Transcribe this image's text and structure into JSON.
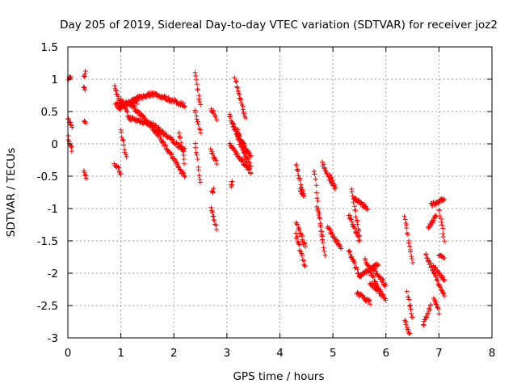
{
  "chart_data": {
    "type": "scatter",
    "title": "Day 205 of 2019, Sidereal Day-to-day VTEC variation (SDTVAR) for receiver joz2",
    "xlabel": "GPS time / hours",
    "ylabel": "SDTVAR / TECUs",
    "xlim": [
      0,
      8
    ],
    "ylim": [
      -3,
      1.5
    ],
    "x_ticks": [
      "0",
      "1",
      "2",
      "3",
      "4",
      "5",
      "6",
      "7",
      "8"
    ],
    "y_ticks": [
      "1.5",
      "1",
      "0.5",
      "0",
      "-0.5",
      "-1",
      "-1.5",
      "-2",
      "-2.5",
      "-3"
    ],
    "grid": true,
    "marker": "plus",
    "color": "#ff0000",
    "segments": [
      {
        "x": [
          0.0,
          0.05
        ],
        "y": [
          1.0,
          1.03
        ]
      },
      {
        "x": [
          0.0,
          0.08
        ],
        "y": [
          0.4,
          0.25
        ]
      },
      {
        "x": [
          0.0,
          0.08
        ],
        "y": [
          0.1,
          -0.1
        ]
      },
      {
        "x": [
          0.3,
          0.33
        ],
        "y": [
          1.05,
          1.1
        ]
      },
      {
        "x": [
          0.3,
          0.32
        ],
        "y": [
          0.9,
          0.85
        ]
      },
      {
        "x": [
          0.3,
          0.33
        ],
        "y": [
          0.35,
          0.33
        ]
      },
      {
        "x": [
          0.3,
          0.35
        ],
        "y": [
          -0.4,
          -0.55
        ]
      },
      {
        "x": [
          0.88,
          1.0
        ],
        "y": [
          -0.3,
          -0.45
        ]
      },
      {
        "x": [
          0.88,
          1.0
        ],
        "y": [
          0.9,
          0.55
        ]
      },
      {
        "x": [
          0.9,
          1.3
        ],
        "y": [
          0.6,
          0.65
        ]
      },
      {
        "x": [
          0.95,
          1.3
        ],
        "y": [
          0.55,
          0.7
        ]
      },
      {
        "x": [
          1.3,
          1.6
        ],
        "y": [
          0.7,
          0.78
        ]
      },
      {
        "x": [
          1.6,
          2.2
        ],
        "y": [
          0.78,
          0.6
        ]
      },
      {
        "x": [
          1.0,
          1.15
        ],
        "y": [
          0.7,
          0.4
        ]
      },
      {
        "x": [
          1.15,
          1.6
        ],
        "y": [
          0.4,
          0.3
        ]
      },
      {
        "x": [
          1.6,
          2.2
        ],
        "y": [
          0.3,
          -0.1
        ]
      },
      {
        "x": [
          1.0,
          1.1
        ],
        "y": [
          0.2,
          -0.2
        ]
      },
      {
        "x": [
          1.15,
          1.7
        ],
        "y": [
          0.65,
          0.15
        ]
      },
      {
        "x": [
          1.7,
          2.2
        ],
        "y": [
          0.15,
          -0.5
        ]
      },
      {
        "x": [
          2.1,
          2.2
        ],
        "y": [
          0.2,
          -0.3
        ]
      },
      {
        "x": [
          2.4,
          2.5
        ],
        "y": [
          1.1,
          0.6
        ]
      },
      {
        "x": [
          2.4,
          2.5
        ],
        "y": [
          0.5,
          0.2
        ]
      },
      {
        "x": [
          2.4,
          2.5
        ],
        "y": [
          0.0,
          -0.6
        ]
      },
      {
        "x": [
          2.7,
          2.8
        ],
        "y": [
          0.55,
          0.4
        ]
      },
      {
        "x": [
          2.7,
          2.8
        ],
        "y": [
          -0.1,
          -0.3
        ]
      },
      {
        "x": [
          2.7,
          2.8
        ],
        "y": [
          -1.0,
          -1.3
        ]
      },
      {
        "x": [
          2.72,
          2.75
        ],
        "y": [
          -0.75,
          -0.72
        ]
      },
      {
        "x": [
          3.05,
          3.45
        ],
        "y": [
          0.45,
          -0.45
        ]
      },
      {
        "x": [
          3.15,
          3.35
        ],
        "y": [
          1.0,
          0.4
        ]
      },
      {
        "x": [
          3.05,
          3.4
        ],
        "y": [
          0.0,
          -0.4
        ]
      },
      {
        "x": [
          3.1,
          3.45
        ],
        "y": [
          0.3,
          -0.2
        ]
      },
      {
        "x": [
          3.08,
          3.1
        ],
        "y": [
          -0.65,
          -0.6
        ]
      },
      {
        "x": [
          3.2,
          3.45
        ],
        "y": [
          0.2,
          -0.35
        ]
      },
      {
        "x": [
          4.3,
          4.45
        ],
        "y": [
          -0.3,
          -0.8
        ]
      },
      {
        "x": [
          4.3,
          4.48
        ],
        "y": [
          -1.2,
          -1.6
        ]
      },
      {
        "x": [
          4.3,
          4.48
        ],
        "y": [
          -1.4,
          -1.9
        ]
      },
      {
        "x": [
          4.38,
          4.45
        ],
        "y": [
          -0.7,
          -0.8
        ]
      },
      {
        "x": [
          4.65,
          4.8
        ],
        "y": [
          -0.4,
          -1.5
        ]
      },
      {
        "x": [
          4.7,
          4.85
        ],
        "y": [
          -0.95,
          -1.7
        ]
      },
      {
        "x": [
          4.8,
          5.0
        ],
        "y": [
          -0.3,
          -0.65
        ]
      },
      {
        "x": [
          4.9,
          5.15
        ],
        "y": [
          -1.3,
          -1.6
        ]
      },
      {
        "x": [
          4.95,
          5.05
        ],
        "y": [
          -0.5,
          -0.7
        ]
      },
      {
        "x": [
          5.3,
          5.5
        ],
        "y": [
          -1.1,
          -1.5
        ]
      },
      {
        "x": [
          5.3,
          5.5
        ],
        "y": [
          -1.65,
          -2.05
        ]
      },
      {
        "x": [
          5.35,
          5.5
        ],
        "y": [
          -0.7,
          -1.4
        ]
      },
      {
        "x": [
          5.4,
          5.65
        ],
        "y": [
          -0.85,
          -1.0
        ]
      },
      {
        "x": [
          5.45,
          5.7
        ],
        "y": [
          -2.3,
          -2.45
        ]
      },
      {
        "x": [
          5.5,
          5.85
        ],
        "y": [
          -2.05,
          -1.85
        ]
      },
      {
        "x": [
          5.6,
          5.9
        ],
        "y": [
          -1.8,
          -2.3
        ]
      },
      {
        "x": [
          5.7,
          6.0
        ],
        "y": [
          -2.15,
          -2.4
        ]
      },
      {
        "x": [
          5.75,
          6.0
        ],
        "y": [
          -1.9,
          -2.2
        ]
      },
      {
        "x": [
          6.35,
          6.45
        ],
        "y": [
          -2.7,
          -2.95
        ]
      },
      {
        "x": [
          6.35,
          6.5
        ],
        "y": [
          -1.1,
          -1.85
        ]
      },
      {
        "x": [
          6.4,
          6.5
        ],
        "y": [
          -2.3,
          -2.7
        ]
      },
      {
        "x": [
          6.7,
          6.85
        ],
        "y": [
          -2.8,
          -2.5
        ]
      },
      {
        "x": [
          6.75,
          7.1
        ],
        "y": [
          -1.7,
          -2.35
        ]
      },
      {
        "x": [
          6.8,
          6.95
        ],
        "y": [
          -1.3,
          -1.1
        ]
      },
      {
        "x": [
          6.85,
          7.1
        ],
        "y": [
          -0.95,
          -0.85
        ]
      },
      {
        "x": [
          6.9,
          7.1
        ],
        "y": [
          -1.9,
          -2.1
        ]
      },
      {
        "x": [
          6.9,
          7.0
        ],
        "y": [
          -2.4,
          -2.6
        ]
      },
      {
        "x": [
          7.0,
          7.1
        ],
        "y": [
          -1.0,
          -1.5
        ]
      },
      {
        "x": [
          7.0,
          7.1
        ],
        "y": [
          -1.7,
          -1.8
        ]
      }
    ]
  }
}
